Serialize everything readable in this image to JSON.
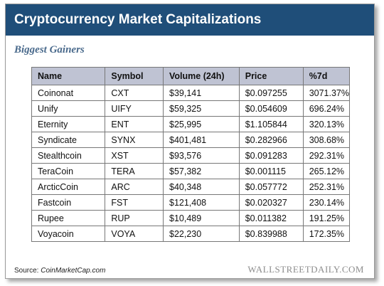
{
  "title": "Cryptocurrency Market Capitalizations",
  "subtitle": "Biggest Gainers",
  "source_label": "Source: ",
  "source_name": "CoinMarketCap.com",
  "brand": "WALLSTREETDAILY.COM",
  "colors": {
    "header_bg": "#1f4e79",
    "table_header_bg": "#bfc3d3",
    "subtitle": "#4a6a8c"
  },
  "chart_data": {
    "type": "table",
    "columns": [
      "Name",
      "Symbol",
      "Volume (24h)",
      "Price",
      "%7d"
    ],
    "rows": [
      [
        "Coinonat",
        "CXT",
        "$39,141",
        "$0.097255",
        "3071.37%"
      ],
      [
        "Unify",
        "UIFY",
        "$59,325",
        "$0.054609",
        "696.24%"
      ],
      [
        "Eternity",
        "ENT",
        "$25,995",
        "$1.105844",
        "320.13%"
      ],
      [
        "Syndicate",
        "SYNX",
        "$401,481",
        "$0.282966",
        "308.68%"
      ],
      [
        "Stealthcoin",
        "XST",
        "$93,576",
        "$0.091283",
        "292.31%"
      ],
      [
        "TeraCoin",
        "TERA",
        "$57,382",
        "$0.001115",
        "265.12%"
      ],
      [
        "ArcticCoin",
        "ARC",
        "$40,348",
        "$0.057772",
        "252.31%"
      ],
      [
        "Fastcoin",
        "FST",
        "$121,408",
        "$0.020327",
        "230.14%"
      ],
      [
        "Rupee",
        "RUP",
        "$10,489",
        "$0.011382",
        "191.25%"
      ],
      [
        "Voyacoin",
        "VOYA",
        "$22,230",
        "$0.839988",
        "172.35%"
      ]
    ]
  }
}
